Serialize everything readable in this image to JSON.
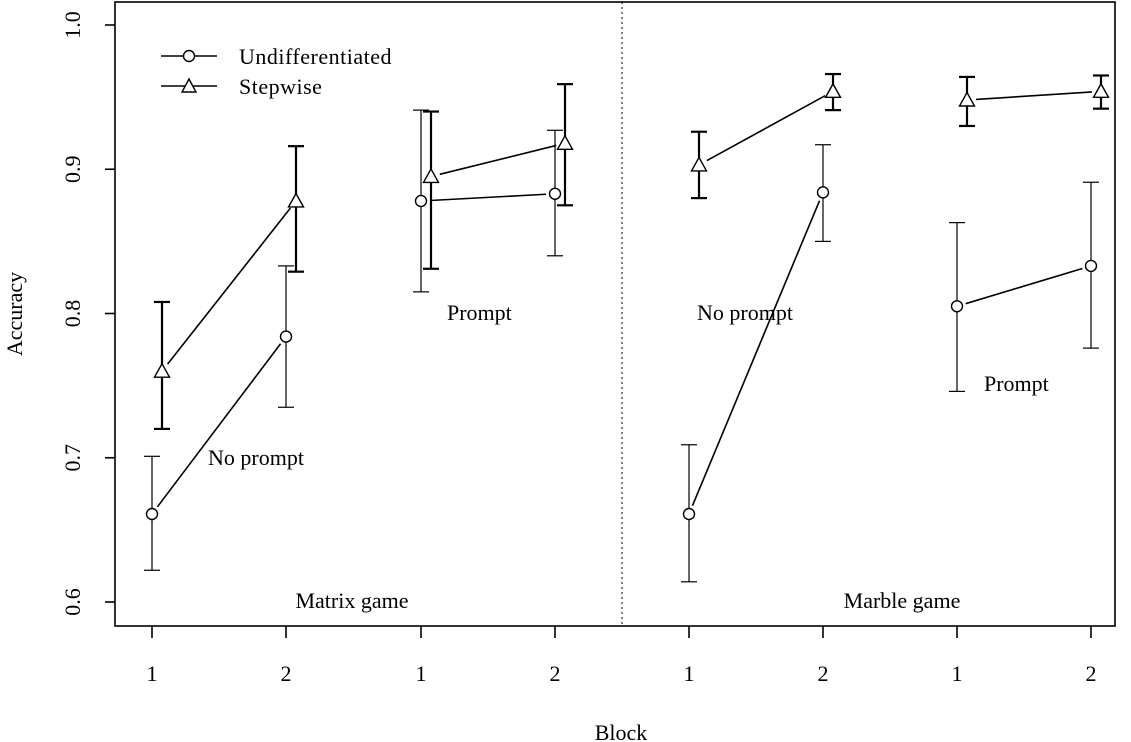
{
  "chart_data": {
    "type": "line",
    "xlabel": "Block",
    "ylabel": "Accuracy",
    "ylim": [
      0.6,
      1.0
    ],
    "yticks": [
      0.6,
      0.7,
      0.8,
      0.9,
      1.0
    ],
    "y_tick_labels": [
      "0.6",
      "0.7",
      "0.8",
      "0.9",
      "1.0"
    ],
    "x_tick_labels": [
      "1",
      "2",
      "1",
      "2",
      "1",
      "2",
      "1",
      "2"
    ],
    "grid": false,
    "legend_position": "top-left",
    "legend": [
      {
        "label": "Undifferentiated",
        "marker": "circle"
      },
      {
        "label": "Stepwise",
        "marker": "triangle"
      }
    ],
    "games": [
      {
        "label": "Matrix game",
        "conditions": [
          {
            "label": "No prompt",
            "blocks": [
              "1",
              "2"
            ],
            "series": [
              {
                "marker": "circle",
                "values": [
                  0.661,
                  0.784
                ],
                "ci_low": [
                  0.622,
                  0.735
                ],
                "ci_high": [
                  0.701,
                  0.833
                ]
              },
              {
                "marker": "triangle",
                "values": [
                  0.76,
                  0.878
                ],
                "ci_low": [
                  0.72,
                  0.829
                ],
                "ci_high": [
                  0.808,
                  0.916
                ]
              }
            ]
          },
          {
            "label": "Prompt",
            "blocks": [
              "1",
              "2"
            ],
            "series": [
              {
                "marker": "circle",
                "values": [
                  0.878,
                  0.883
                ],
                "ci_low": [
                  0.815,
                  0.84
                ],
                "ci_high": [
                  0.941,
                  0.927
                ]
              },
              {
                "marker": "triangle",
                "values": [
                  0.895,
                  0.918
                ],
                "ci_low": [
                  0.831,
                  0.875
                ],
                "ci_high": [
                  0.94,
                  0.959
                ]
              }
            ]
          }
        ]
      },
      {
        "label": "Marble game",
        "conditions": [
          {
            "label": "No prompt",
            "blocks": [
              "1",
              "2"
            ],
            "series": [
              {
                "marker": "circle",
                "values": [
                  0.661,
                  0.884
                ],
                "ci_low": [
                  0.614,
                  0.85
                ],
                "ci_high": [
                  0.709,
                  0.917
                ]
              },
              {
                "marker": "triangle",
                "values": [
                  0.903,
                  0.954
                ],
                "ci_low": [
                  0.88,
                  0.941
                ],
                "ci_high": [
                  0.926,
                  0.966
                ]
              }
            ]
          },
          {
            "label": "Prompt",
            "blocks": [
              "1",
              "2"
            ],
            "series": [
              {
                "marker": "circle",
                "values": [
                  0.805,
                  0.833
                ],
                "ci_low": [
                  0.746,
                  0.776
                ],
                "ci_high": [
                  0.863,
                  0.891
                ]
              },
              {
                "marker": "triangle",
                "values": [
                  0.948,
                  0.954
                ],
                "ci_low": [
                  0.93,
                  0.942
                ],
                "ci_high": [
                  0.964,
                  0.965
                ]
              }
            ]
          }
        ]
      }
    ]
  }
}
